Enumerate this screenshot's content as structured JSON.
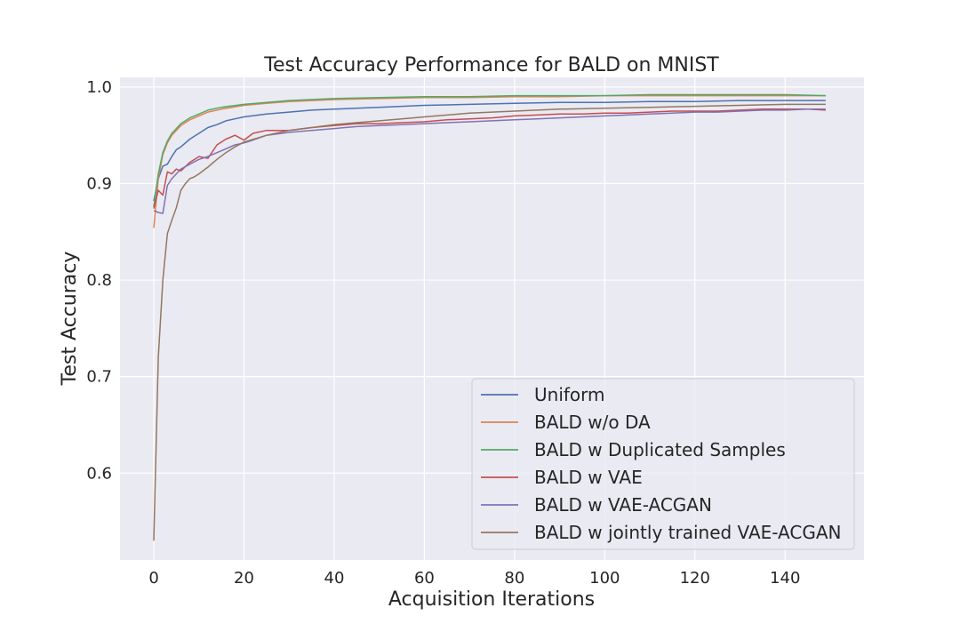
{
  "chart_data": {
    "type": "line",
    "title": "Test Accuracy Performance for BALD on MNIST",
    "xlabel": "Acquisition Iterations",
    "ylabel": "Test Accuracy",
    "xlim": [
      -7.5,
      157.5
    ],
    "ylim": [
      0.51,
      1.01
    ],
    "xticks": [
      0,
      20,
      40,
      60,
      80,
      100,
      120,
      140
    ],
    "yticks": [
      0.6,
      0.7,
      0.8,
      0.9,
      1.0
    ],
    "ytick_labels": [
      "0.6",
      "0.7",
      "0.8",
      "0.9",
      "1.0"
    ],
    "grid": true,
    "legend_position": "lower-right",
    "background": "#eaeaf2",
    "series": [
      {
        "name": "Uniform",
        "color": "#4c72b0",
        "points": [
          [
            0,
            0.882
          ],
          [
            1,
            0.905
          ],
          [
            2,
            0.918
          ],
          [
            3,
            0.92
          ],
          [
            4,
            0.928
          ],
          [
            5,
            0.935
          ],
          [
            6,
            0.938
          ],
          [
            8,
            0.946
          ],
          [
            10,
            0.952
          ],
          [
            12,
            0.958
          ],
          [
            14,
            0.961
          ],
          [
            16,
            0.965
          ],
          [
            18,
            0.967
          ],
          [
            20,
            0.969
          ],
          [
            25,
            0.972
          ],
          [
            30,
            0.974
          ],
          [
            35,
            0.976
          ],
          [
            40,
            0.977
          ],
          [
            45,
            0.978
          ],
          [
            50,
            0.979
          ],
          [
            55,
            0.98
          ],
          [
            60,
            0.981
          ],
          [
            70,
            0.982
          ],
          [
            80,
            0.983
          ],
          [
            90,
            0.984
          ],
          [
            100,
            0.984
          ],
          [
            110,
            0.985
          ],
          [
            120,
            0.985
          ],
          [
            130,
            0.986
          ],
          [
            140,
            0.986
          ],
          [
            149,
            0.986
          ]
        ]
      },
      {
        "name": "BALD w/o DA",
        "color": "#dd8452",
        "points": [
          [
            0,
            0.854
          ],
          [
            1,
            0.905
          ],
          [
            2,
            0.93
          ],
          [
            3,
            0.942
          ],
          [
            4,
            0.95
          ],
          [
            5,
            0.955
          ],
          [
            6,
            0.96
          ],
          [
            8,
            0.966
          ],
          [
            10,
            0.97
          ],
          [
            12,
            0.974
          ],
          [
            15,
            0.977
          ],
          [
            20,
            0.981
          ],
          [
            25,
            0.983
          ],
          [
            30,
            0.985
          ],
          [
            40,
            0.987
          ],
          [
            50,
            0.988
          ],
          [
            60,
            0.989
          ],
          [
            70,
            0.989
          ],
          [
            80,
            0.99
          ],
          [
            90,
            0.99
          ],
          [
            100,
            0.991
          ],
          [
            110,
            0.991
          ],
          [
            120,
            0.991
          ],
          [
            130,
            0.991
          ],
          [
            140,
            0.991
          ],
          [
            149,
            0.991
          ]
        ]
      },
      {
        "name": "BALD w Duplicated Samples",
        "color": "#55a868",
        "points": [
          [
            0,
            0.876
          ],
          [
            1,
            0.91
          ],
          [
            2,
            0.932
          ],
          [
            3,
            0.944
          ],
          [
            4,
            0.952
          ],
          [
            5,
            0.957
          ],
          [
            6,
            0.962
          ],
          [
            8,
            0.968
          ],
          [
            10,
            0.972
          ],
          [
            12,
            0.976
          ],
          [
            15,
            0.979
          ],
          [
            20,
            0.982
          ],
          [
            25,
            0.984
          ],
          [
            30,
            0.986
          ],
          [
            40,
            0.988
          ],
          [
            50,
            0.989
          ],
          [
            60,
            0.99
          ],
          [
            70,
            0.99
          ],
          [
            80,
            0.991
          ],
          [
            90,
            0.991
          ],
          [
            100,
            0.991
          ],
          [
            110,
            0.992
          ],
          [
            120,
            0.992
          ],
          [
            130,
            0.992
          ],
          [
            140,
            0.992
          ],
          [
            149,
            0.991
          ]
        ]
      },
      {
        "name": "BALD w VAE",
        "color": "#c44e52",
        "points": [
          [
            0,
            0.874
          ],
          [
            1,
            0.893
          ],
          [
            2,
            0.888
          ],
          [
            3,
            0.912
          ],
          [
            4,
            0.91
          ],
          [
            5,
            0.915
          ],
          [
            6,
            0.913
          ],
          [
            8,
            0.922
          ],
          [
            10,
            0.928
          ],
          [
            12,
            0.926
          ],
          [
            14,
            0.94
          ],
          [
            16,
            0.946
          ],
          [
            18,
            0.95
          ],
          [
            20,
            0.945
          ],
          [
            22,
            0.952
          ],
          [
            25,
            0.955
          ],
          [
            30,
            0.955
          ],
          [
            35,
            0.958
          ],
          [
            40,
            0.96
          ],
          [
            45,
            0.962
          ],
          [
            50,
            0.962
          ],
          [
            55,
            0.963
          ],
          [
            60,
            0.964
          ],
          [
            65,
            0.966
          ],
          [
            70,
            0.967
          ],
          [
            75,
            0.968
          ],
          [
            80,
            0.97
          ],
          [
            85,
            0.971
          ],
          [
            90,
            0.972
          ],
          [
            95,
            0.972
          ],
          [
            100,
            0.973
          ],
          [
            105,
            0.973
          ],
          [
            110,
            0.974
          ],
          [
            115,
            0.975
          ],
          [
            120,
            0.975
          ],
          [
            125,
            0.975
          ],
          [
            130,
            0.976
          ],
          [
            135,
            0.977
          ],
          [
            140,
            0.977
          ],
          [
            145,
            0.977
          ],
          [
            149,
            0.976
          ]
        ]
      },
      {
        "name": "BALD w VAE-ACGAN",
        "color": "#8172b3",
        "points": [
          [
            0,
            0.872
          ],
          [
            1,
            0.87
          ],
          [
            2,
            0.869
          ],
          [
            3,
            0.898
          ],
          [
            4,
            0.905
          ],
          [
            5,
            0.91
          ],
          [
            6,
            0.915
          ],
          [
            8,
            0.92
          ],
          [
            10,
            0.925
          ],
          [
            12,
            0.928
          ],
          [
            14,
            0.932
          ],
          [
            16,
            0.936
          ],
          [
            18,
            0.94
          ],
          [
            20,
            0.942
          ],
          [
            22,
            0.945
          ],
          [
            25,
            0.95
          ],
          [
            30,
            0.953
          ],
          [
            35,
            0.955
          ],
          [
            40,
            0.957
          ],
          [
            45,
            0.959
          ],
          [
            50,
            0.96
          ],
          [
            55,
            0.961
          ],
          [
            60,
            0.962
          ],
          [
            65,
            0.963
          ],
          [
            70,
            0.964
          ],
          [
            75,
            0.965
          ],
          [
            80,
            0.966
          ],
          [
            85,
            0.967
          ],
          [
            90,
            0.968
          ],
          [
            95,
            0.969
          ],
          [
            100,
            0.97
          ],
          [
            105,
            0.971
          ],
          [
            110,
            0.972
          ],
          [
            115,
            0.973
          ],
          [
            120,
            0.974
          ],
          [
            125,
            0.974
          ],
          [
            130,
            0.975
          ],
          [
            135,
            0.976
          ],
          [
            140,
            0.976
          ],
          [
            145,
            0.977
          ],
          [
            149,
            0.977
          ]
        ]
      },
      {
        "name": "BALD w jointly trained VAE-ACGAN",
        "color": "#937860",
        "points": [
          [
            0,
            0.53
          ],
          [
            1,
            0.72
          ],
          [
            2,
            0.8
          ],
          [
            3,
            0.848
          ],
          [
            4,
            0.862
          ],
          [
            5,
            0.875
          ],
          [
            6,
            0.893
          ],
          [
            7,
            0.9
          ],
          [
            8,
            0.905
          ],
          [
            9,
            0.907
          ],
          [
            10,
            0.91
          ],
          [
            12,
            0.917
          ],
          [
            14,
            0.925
          ],
          [
            16,
            0.932
          ],
          [
            18,
            0.938
          ],
          [
            20,
            0.943
          ],
          [
            25,
            0.95
          ],
          [
            30,
            0.955
          ],
          [
            35,
            0.958
          ],
          [
            40,
            0.961
          ],
          [
            45,
            0.963
          ],
          [
            50,
            0.965
          ],
          [
            55,
            0.967
          ],
          [
            60,
            0.969
          ],
          [
            65,
            0.971
          ],
          [
            70,
            0.973
          ],
          [
            75,
            0.974
          ],
          [
            80,
            0.975
          ],
          [
            85,
            0.976
          ],
          [
            90,
            0.977
          ],
          [
            100,
            0.978
          ],
          [
            110,
            0.979
          ],
          [
            120,
            0.98
          ],
          [
            130,
            0.981
          ],
          [
            140,
            0.982
          ],
          [
            149,
            0.982
          ]
        ]
      }
    ]
  }
}
